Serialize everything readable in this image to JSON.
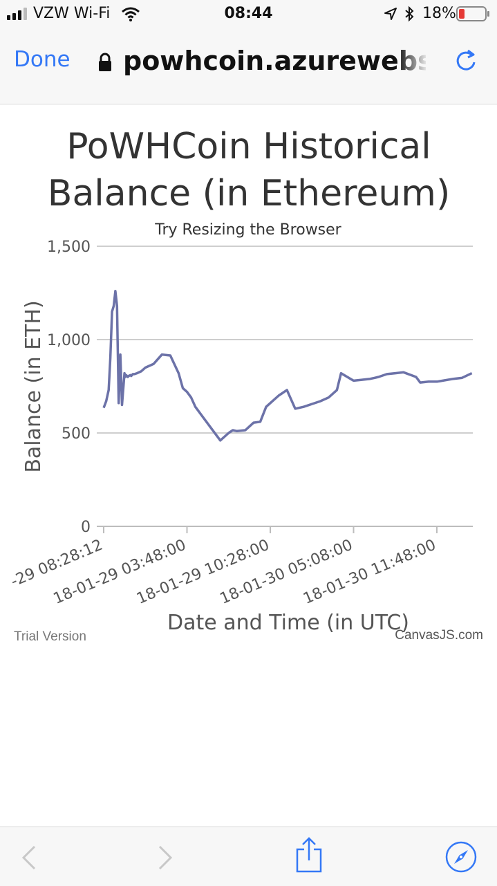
{
  "status_bar": {
    "carrier": "VZW Wi-Fi",
    "time": "08:44",
    "battery": "18%"
  },
  "browser": {
    "done_label": "Done",
    "url": "powhcoin.azurewebsites.net"
  },
  "chart_data": {
    "type": "line",
    "title_line1": "PoWHCoin Historical",
    "title_line2": "Balance (in Ethereum)",
    "subtitle": "Try Resizing the Browser",
    "xlabel": "Date and Time (in UTC)",
    "ylabel": "Balance (in ETH)",
    "ylim": [
      0,
      1500
    ],
    "y_ticks": [
      "0",
      "500",
      "1,000",
      "1,500"
    ],
    "y_tick_values": [
      0,
      500,
      1000,
      1500
    ],
    "x_ticks": [
      "-29 08:28:12",
      "18-01-29 03:48:00",
      "18-01-29 10:28:00",
      "18-01-30 05:08:00",
      "18-01-30 11:48:00"
    ],
    "x_tick_positions": [
      0,
      1,
      2,
      3,
      4
    ],
    "xlim": [
      0,
      4.42
    ],
    "grid": true,
    "series": [
      {
        "color": "#6c72a8",
        "x": [
          0,
          0.03,
          0.06,
          0.08,
          0.1,
          0.12,
          0.14,
          0.16,
          0.18,
          0.2,
          0.22,
          0.25,
          0.26,
          0.27,
          0.29,
          0.3,
          0.32,
          0.33,
          0.34,
          0.35,
          0.37,
          0.4,
          0.45,
          0.5,
          0.6,
          0.7,
          0.8,
          0.9,
          0.95,
          1.0,
          1.05,
          1.1,
          1.15,
          1.2,
          1.3,
          1.4,
          1.5,
          1.55,
          1.6,
          1.7,
          1.8,
          1.88,
          1.95,
          2.0,
          2.1,
          2.2,
          2.3,
          2.4,
          2.5,
          2.6,
          2.7,
          2.75,
          2.8,
          2.85,
          3.0,
          3.1,
          3.2,
          3.25,
          3.3,
          3.4,
          3.5,
          3.6,
          3.75,
          3.8,
          3.9,
          4.0,
          4.2,
          4.3,
          4.42
        ],
        "y": [
          635,
          670,
          730,
          900,
          1150,
          1180,
          1260,
          1180,
          660,
          920,
          650,
          820,
          800,
          810,
          800,
          805,
          810,
          805,
          810,
          815,
          815,
          820,
          830,
          850,
          870,
          920,
          915,
          820,
          740,
          720,
          690,
          640,
          610,
          580,
          520,
          460,
          500,
          515,
          510,
          515,
          555,
          560,
          640,
          660,
          700,
          730,
          630,
          640,
          655,
          670,
          690,
          710,
          730,
          820,
          780,
          785,
          790,
          795,
          800,
          815,
          820,
          825,
          800,
          770,
          775,
          775,
          790,
          795,
          820
        ]
      }
    ]
  },
  "watermark": {
    "left": "Trial Version",
    "right": "CanvasJS.com"
  },
  "icons": [
    "signal-icon",
    "wifi-icon",
    "location-icon",
    "bluetooth-icon",
    "battery-icon",
    "lock-icon",
    "reload-icon",
    "back-icon",
    "forward-icon",
    "share-icon",
    "safari-icon"
  ]
}
